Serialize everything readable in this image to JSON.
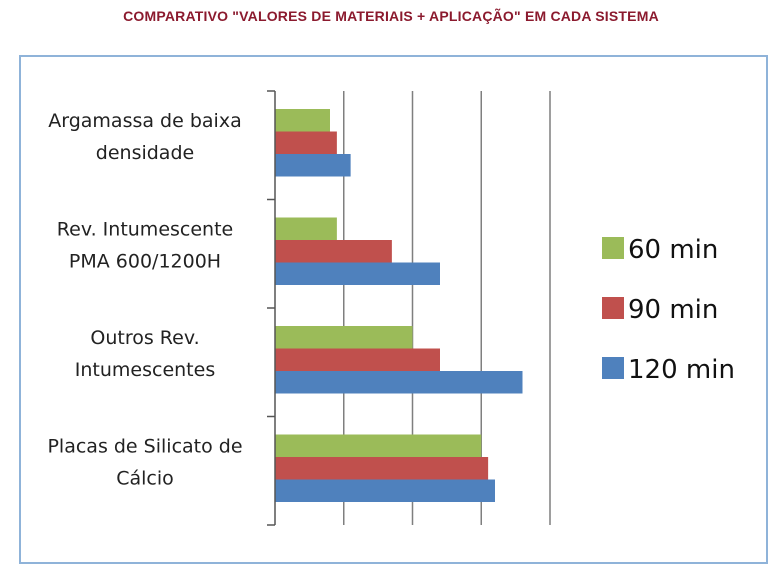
{
  "chart_data": {
    "type": "bar",
    "orientation": "horizontal",
    "title": "COMPARATIVO \"VALORES DE MATERIAIS + APLICAÇÃO\" EM CADA SISTEMA",
    "categories": [
      [
        "Argamassa de baixa",
        "densidade"
      ],
      [
        "Rev. Intumescente",
        "PMA 600/1200H"
      ],
      [
        "Outros Rev.",
        "Intumescentes"
      ],
      [
        "Placas de Silicato de",
        "Cálcio"
      ]
    ],
    "series": [
      {
        "name": "60 min",
        "color": "#9bbb59",
        "values": [
          0.8,
          0.9,
          2.0,
          3.0
        ]
      },
      {
        "name": "90 min",
        "color": "#c0504d",
        "values": [
          0.9,
          1.7,
          2.4,
          3.1
        ]
      },
      {
        "name": "120 min",
        "color": "#4f81bd",
        "values": [
          1.1,
          2.4,
          3.6,
          3.2
        ]
      }
    ],
    "xlim": [
      0,
      4
    ],
    "grid": true,
    "legend_position": "right"
  }
}
